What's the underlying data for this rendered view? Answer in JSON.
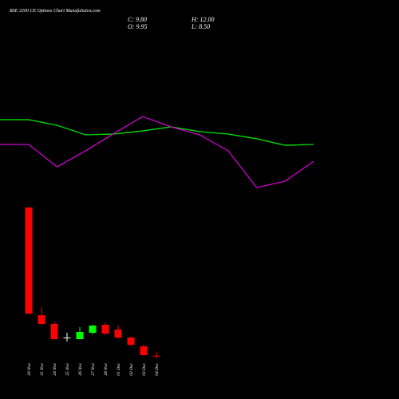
{
  "chart_data": [
    {
      "type": "candlestick",
      "title": "BSE 3200 CE Options Chart MunafaSutra.com",
      "ohlc_labels": [
        "C: 9.80",
        "H: 12.00",
        "O: 9.95",
        "L: 8.50"
      ],
      "categories": [
        "20 Nov",
        "21 Nov",
        "24 Nov",
        "25 Nov",
        "26 Nov",
        "27 Nov",
        "28 Nov",
        "01 Dec",
        "02 Dec",
        "03 Dec",
        "04 Dec"
      ],
      "open": [
        102.8,
        35.3,
        29.8,
        21.3,
        20.3,
        24.3,
        29.3,
        26.3,
        21.3,
        15.8,
        9.95
      ],
      "high": [
        103,
        40.3,
        31.3,
        24.3,
        27.8,
        29.3,
        30.3,
        28.8,
        21.8,
        16.8,
        12.0
      ],
      "low": [
        36,
        29.3,
        20.3,
        18.8,
        20.3,
        23.3,
        22.8,
        20.8,
        15.8,
        9.8,
        8.5
      ],
      "close": [
        36.3,
        29.8,
        20.3,
        21.3,
        24.8,
        28.8,
        23.8,
        21.3,
        16.8,
        10.3,
        9.8
      ],
      "up_color": "#00ff00",
      "down_color": "#ff0000",
      "flat_color": "#ffffff",
      "ylim": [
        7.8,
        105.3
      ]
    },
    {
      "type": "line",
      "series": [
        {
          "color": "#00dd00",
          "values": [
            66.7,
            66.7,
            62,
            54,
            54.7,
            57.3,
            60.7,
            56.7,
            54.7,
            50.7,
            45.3,
            46
          ]
        },
        {
          "color": "#cc00cc",
          "values": [
            46,
            46,
            27.3,
            40.7,
            55.3,
            69.3,
            60.7,
            54,
            40.7,
            10,
            15.3,
            32
          ]
        }
      ],
      "ylim": [
        0,
        100
      ]
    }
  ]
}
